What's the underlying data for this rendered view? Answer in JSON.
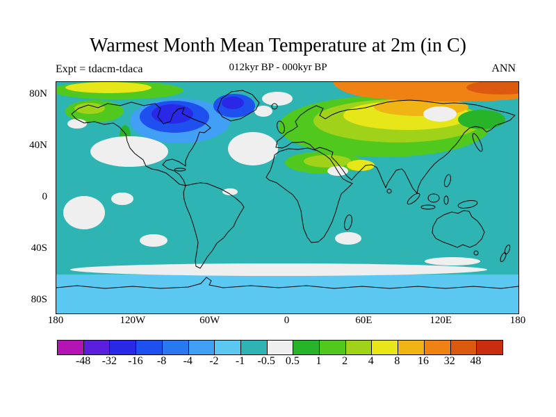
{
  "header": {
    "title": "Warmest Month Mean Temperature at 2m (in C)",
    "expt_label": "Expt = tdacm-tdaca",
    "period_label": "012kyr BP - 000kyr BP",
    "season_label": "ANN"
  },
  "chart_data": {
    "type": "heatmap",
    "title": "Warmest Month Mean Temperature at 2m (in C)",
    "subtitle_left": "Expt = tdacm-tdaca",
    "subtitle_center": "012kyr BP - 000kyr BP",
    "subtitle_right": "ANN",
    "projection": "equirectangular world map, lon -180..180, lat 90..-90",
    "units": "degrees C (anomaly, 12 kyr BP minus 0 kyr BP)",
    "lat_ticks": [
      "80N",
      "40N",
      "0",
      "40S",
      "80S"
    ],
    "lon_ticks": [
      "180",
      "120W",
      "60W",
      "0",
      "60E",
      "120E",
      "180"
    ],
    "colorbar_levels": [
      "-48",
      "-32",
      "-16",
      "-8",
      "-4",
      "-2",
      "-1",
      "-0.5",
      "0.5",
      "1",
      "2",
      "4",
      "8",
      "16",
      "32",
      "48"
    ],
    "colorbar_colors": [
      "#b414b4",
      "#5a1edc",
      "#2828e6",
      "#1e50f0",
      "#2878f0",
      "#41a0f5",
      "#5ac8f0",
      "#2fb4b4",
      "#efefef",
      "#28b428",
      "#50c81e",
      "#a0d219",
      "#e6e619",
      "#f0b414",
      "#f08214",
      "#dc5a0f",
      "#c82d0f"
    ],
    "legend_position": "bottom",
    "grid": false,
    "dominant_value_band": "-1 to -0.5 (teal) over most oceans",
    "pattern_summary": "Warming (green/yellow/orange, +1 to +32) over Eurasia, Arctic coasts, Alaska and North Africa; cooling (blue, -16 to -4) over NE Canada, Hudson Bay and Greenland; near-zero white patches in N Pacific, N Atlantic and ~55S Southern Ocean; -2 to -1 light blue south of 60S."
  }
}
